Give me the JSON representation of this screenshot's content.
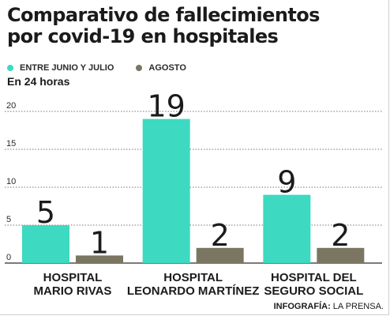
{
  "title_line1": "Comparativo de fallecimientos",
  "title_line2": "por covid-19 en hospitales",
  "subtitle": "En 24 horas",
  "credit_bold": "INFOGRAFÍA:",
  "credit_rest": " LA PRENSA.",
  "colors": {
    "series1": "#3dd9c1",
    "series2": "#7a7661"
  },
  "chart_data": {
    "type": "bar",
    "title": "Comparativo de fallecimientos por covid-19 en hospitales",
    "subtitle": "En 24 horas",
    "xlabel": "",
    "ylabel": "",
    "ylim": [
      0,
      20
    ],
    "yticks": [
      0,
      5,
      10,
      15,
      20
    ],
    "grid": true,
    "legend_position": "top-left",
    "categories": [
      [
        "HOSPITAL",
        "MARIO RIVAS"
      ],
      [
        "HOSPITAL",
        "LEONARDO MARTÍNEZ"
      ],
      [
        "HOSPITAL DEL",
        "SEGURO SOCIAL"
      ]
    ],
    "series": [
      {
        "name": "ENTRE JUNIO Y JULIO",
        "color": "#3dd9c1",
        "values": [
          5,
          19,
          9
        ]
      },
      {
        "name": "AGOSTO",
        "color": "#7a7661",
        "values": [
          1,
          2,
          2
        ]
      }
    ]
  }
}
